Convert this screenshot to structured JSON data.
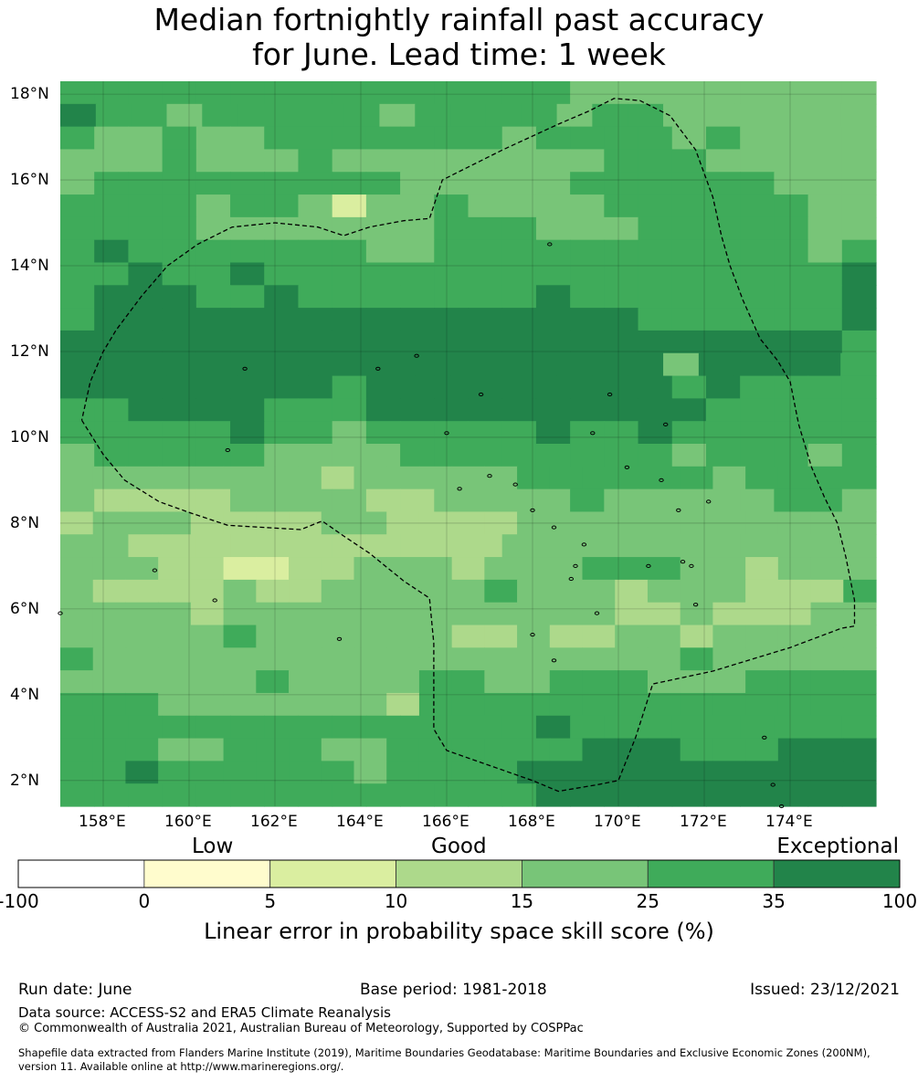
{
  "title": {
    "line1": "Median fortnightly rainfall past accuracy",
    "line2": "for June. Lead time: 1 week"
  },
  "map": {
    "lon_range": [
      157.0,
      176.0
    ],
    "lat_range": [
      1.4,
      18.3
    ],
    "lon_ticks": [
      "158°E",
      "160°E",
      "162°E",
      "164°E",
      "166°E",
      "168°E",
      "170°E",
      "172°E",
      "174°E"
    ],
    "lat_ticks": [
      "18°N",
      "16°N",
      "14°N",
      "12°N",
      "10°N",
      "8°N",
      "6°N",
      "4°N",
      "2°N"
    ],
    "cell_palette": {
      "a": "#add98b",
      "l": "#78c578",
      "m": "#3fab5a",
      "d": "#22844a",
      "y": "#daeea0"
    },
    "grid_rows": [
      "mmmmmmmmmmmmmmmlllllllll",
      "dmmlmmmmmlmmmmlmmllllll",
      "mllmllmmmmmmmlmmmmlmllll",
      "lllmlllmllllllllmmmlllll",
      "lmmmmmmmmmlllllmmmmmmlll",
      "mmmmlmmlyllmllllmmmmmmll",
      "mmmmlllllllmmmlllmmmmmll",
      "mdmmmmmmmllmmmmmmmmmmmlm",
      "mmdmmdmmmmmmmmmmmmmmmmmd",
      "mdddmmdmmmmmmmdmmmmmmmmd",
      "mddddddddddddddddmmmmmmd",
      "dddddddddddddddddddddddm",
      "dddddddddddddddddlddddm",
      "ddddddddmdddddddddmdmmmm",
      "mmddddmmmddddddddddmmmmm",
      "mmmmmdmmlmmmmmdmmdmmmmmm",
      "lmmmmmllllmmmmmmmmlmmmlm",
      "llllllllalllllmmmmmmlmmmm",
      "laaaallllaallllmlllllmml",
      "alllaaaallaaaalllllllllll",
      "llaaaaaaaaaaalllllllllll",
      "lllaayyaalllalllmmmllalll",
      "laaaalaalllllmlllalllaaam",
      "llllallllllllllllaalaaall",
      "lllllmllllllaalaallalllll",
      "mllllllllllllllllllmlllll",
      "llllllmllllmmllmmmlllmmmm",
      "mmmlllllllammmmmmmmmmmmmm",
      "mmmmmmmmmmmmmmdmmmmmmmmm",
      "mmmllmmmllmmmmmmdddmmmddd",
      "mmdmmmmmmlmmmmddddddddddd",
      "mmmmmmmmmmmmmmdddddddddd"
    ],
    "grid_resolution_deg": 0.84,
    "eez_boundary_lonlat": [
      [
        157.5,
        10.4
      ],
      [
        158.0,
        9.6
      ],
      [
        158.5,
        9.0
      ],
      [
        159.3,
        8.5
      ],
      [
        160.0,
        8.25
      ],
      [
        160.9,
        7.95
      ],
      [
        162.6,
        7.85
      ],
      [
        163.1,
        8.05
      ],
      [
        163.6,
        7.7
      ],
      [
        164.2,
        7.3
      ],
      [
        165.0,
        6.65
      ],
      [
        165.6,
        6.25
      ],
      [
        165.7,
        5.2
      ],
      [
        165.7,
        4.0
      ],
      [
        165.7,
        3.2
      ],
      [
        166.0,
        2.7
      ],
      [
        167.0,
        2.35
      ],
      [
        168.0,
        2.0
      ],
      [
        168.6,
        1.75
      ],
      [
        169.5,
        1.9
      ],
      [
        170.0,
        2.0
      ],
      [
        170.4,
        3.0
      ],
      [
        170.8,
        4.25
      ],
      [
        172.2,
        4.55
      ],
      [
        174.0,
        5.1
      ],
      [
        175.2,
        5.55
      ],
      [
        175.5,
        5.6
      ],
      [
        175.5,
        6.2
      ],
      [
        175.3,
        7.2
      ],
      [
        175.1,
        8.0
      ],
      [
        174.8,
        8.6
      ],
      [
        174.5,
        9.3
      ],
      [
        174.2,
        10.3
      ],
      [
        174.0,
        11.3
      ],
      [
        173.7,
        11.8
      ],
      [
        173.3,
        12.3
      ],
      [
        172.9,
        13.2
      ],
      [
        172.6,
        14.0
      ],
      [
        172.4,
        14.7
      ],
      [
        172.2,
        15.6
      ],
      [
        171.8,
        16.7
      ],
      [
        171.2,
        17.5
      ],
      [
        170.5,
        17.85
      ],
      [
        169.9,
        17.9
      ],
      [
        169.3,
        17.6
      ],
      [
        168.6,
        17.3
      ],
      [
        167.3,
        16.7
      ],
      [
        165.9,
        16.0
      ],
      [
        165.6,
        15.1
      ],
      [
        165.0,
        15.05
      ],
      [
        164.2,
        14.9
      ],
      [
        163.6,
        14.7
      ],
      [
        163.0,
        14.9
      ],
      [
        162.0,
        15.0
      ],
      [
        161.0,
        14.9
      ],
      [
        160.2,
        14.5
      ],
      [
        159.5,
        14.0
      ],
      [
        158.9,
        13.3
      ],
      [
        158.3,
        12.5
      ],
      [
        158.0,
        12.0
      ],
      [
        157.7,
        11.3
      ],
      [
        157.5,
        10.4
      ]
    ],
    "islands_lonlat": [
      [
        159.2,
        6.9
      ],
      [
        157.0,
        5.9
      ],
      [
        163.5,
        5.3
      ],
      [
        160.6,
        6.2
      ],
      [
        161.3,
        11.6
      ],
      [
        164.4,
        11.6
      ],
      [
        165.3,
        11.9
      ],
      [
        166.8,
        11.0
      ],
      [
        167.0,
        9.1
      ],
      [
        166.3,
        8.8
      ],
      [
        167.6,
        8.9
      ],
      [
        166.0,
        10.1
      ],
      [
        168.0,
        8.3
      ],
      [
        168.5,
        7.9
      ],
      [
        169.2,
        7.5
      ],
      [
        169.0,
        7.0
      ],
      [
        168.9,
        6.7
      ],
      [
        170.7,
        7.0
      ],
      [
        171.5,
        7.1
      ],
      [
        171.7,
        7.0
      ],
      [
        171.8,
        6.1
      ],
      [
        169.5,
        5.9
      ],
      [
        168.5,
        4.8
      ],
      [
        168.0,
        5.4
      ],
      [
        173.4,
        3.0
      ],
      [
        173.6,
        1.9
      ],
      [
        173.8,
        1.4
      ],
      [
        169.4,
        10.1
      ],
      [
        169.8,
        11.0
      ],
      [
        171.1,
        10.3
      ],
      [
        170.2,
        9.3
      ],
      [
        171.0,
        9.0
      ],
      [
        171.4,
        8.3
      ],
      [
        172.1,
        8.5
      ],
      [
        160.9,
        9.7
      ],
      [
        168.4,
        14.5
      ]
    ]
  },
  "colorbar": {
    "categories": [
      "Low",
      "Good",
      "Exceptional"
    ],
    "colors": [
      "#ffffff",
      "#fffccd",
      "#daeea0",
      "#add98b",
      "#78c578",
      "#3fab5a",
      "#22844a"
    ],
    "ticks": [
      "-100",
      "0",
      "5",
      "10",
      "15",
      "25",
      "35",
      "100"
    ],
    "title": "Linear error in probability space skill score (%)"
  },
  "footer": {
    "run_date": "Run date: June",
    "base_period": "Base period: 1981-2018",
    "issued": "Issued: 23/12/2021",
    "data_source": "Data source: ACCESS-S2 and ERA5 Climate Reanalysis",
    "copyright": "© Commonwealth of Australia 2021, Australian Bureau of Meteorology, Supported by COSPPac",
    "shapefile_line1": "Shapefile data extracted from Flanders Marine Institute (2019), Maritime Boundaries Geodatabase: Maritime Boundaries and Exclusive Economic Zones (200NM),",
    "shapefile_line2": "version 11. Available online at http://www.marineregions.org/."
  }
}
